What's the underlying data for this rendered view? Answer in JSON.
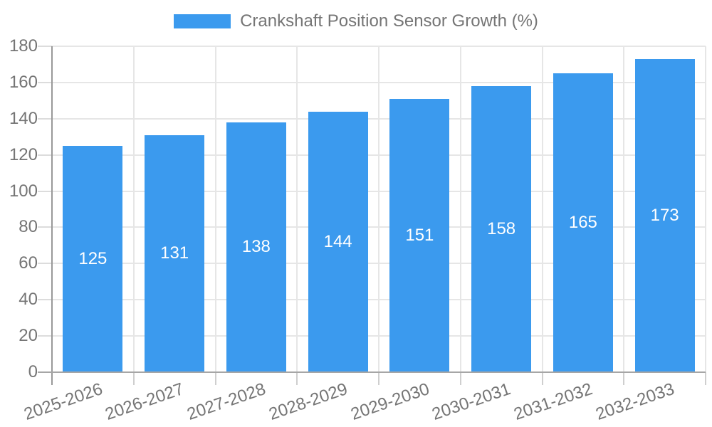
{
  "chart_data": {
    "type": "bar",
    "title": "Crankshaft Position Sensor Growth (%)",
    "categories": [
      "2025-2026",
      "2026-2027",
      "2027-2028",
      "2028-2029",
      "2029-2030",
      "2030-2031",
      "2031-2032",
      "2032-2033"
    ],
    "series": [
      {
        "name": "Crankshaft Position Sensor Growth (%)",
        "values": [
          125,
          131,
          138,
          144,
          151,
          158,
          165,
          173
        ]
      }
    ],
    "xlabel": "",
    "ylabel": "",
    "ylim": [
      0,
      180
    ],
    "y_ticks": [
      0,
      20,
      40,
      60,
      80,
      100,
      120,
      140,
      160,
      180
    ],
    "grid": true,
    "legend_position": "top-center",
    "value_labels": "inside-center",
    "colors": {
      "bar": "#3b9aee",
      "value_label": "#ffffff",
      "axis_text": "#757575",
      "grid_line": "#e6e6e6",
      "y_axis_line": "#999999",
      "x_axis_line": "#a6a6a6",
      "background": "#ffffff"
    }
  }
}
